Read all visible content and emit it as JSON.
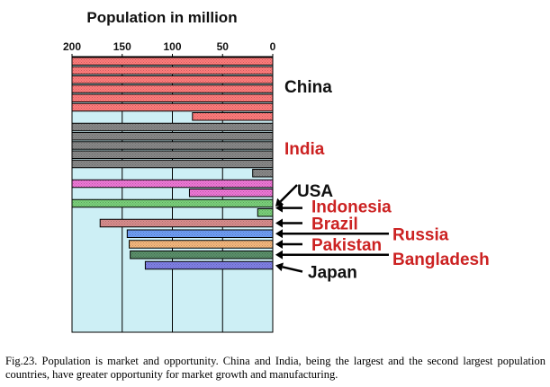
{
  "caption": "Fig.23. Population is market and opportunity. China and India, being the largest and the second largest population countries, have greater opportunity for market growth and manufacturing.",
  "colors": {
    "plot_background": "#cdeff5",
    "grid": "#000000",
    "red_label": "#cc2222",
    "black_label": "#111111"
  },
  "chart_data": {
    "type": "bar",
    "orientation": "horizontal",
    "axis_direction": "reversed",
    "title": "Population in million",
    "xlabel": "",
    "ylabel": "",
    "xlim": [
      0,
      200
    ],
    "xticks": [
      200,
      150,
      100,
      50,
      0
    ],
    "xtick_labels": [
      "200",
      "150",
      "100",
      "50",
      "0"
    ],
    "row_step": 200,
    "countries": [
      {
        "name": "China",
        "value": 1280,
        "color": "#ff7b7b",
        "label_color": "#111111",
        "arrow": false
      },
      {
        "name": "India",
        "value": 1020,
        "color": "#888888",
        "label_color": "#cc2222",
        "arrow": false
      },
      {
        "name": "USA",
        "value": 283,
        "color": "#ee77d6",
        "label_color": "#111111",
        "arrow": true
      },
      {
        "name": "Indonesia",
        "value": 215,
        "color": "#7ad07a",
        "label_color": "#cc2222",
        "arrow": true
      },
      {
        "name": "Brazil",
        "value": 172,
        "color": "#d98d8d",
        "label_color": "#cc2222",
        "arrow": true
      },
      {
        "name": "Russia",
        "value": 145,
        "color": "#6f9ef5",
        "label_color": "#cc2222",
        "arrow": true
      },
      {
        "name": "Pakistan",
        "value": 143,
        "color": "#f6b87e",
        "label_color": "#cc2222",
        "arrow": true
      },
      {
        "name": "Bangladesh",
        "value": 142,
        "color": "#5a8f6a",
        "label_color": "#cc2222",
        "arrow": true
      },
      {
        "name": "Japan",
        "value": 127,
        "color": "#8080e6",
        "label_color": "#111111",
        "arrow": true
      }
    ]
  }
}
